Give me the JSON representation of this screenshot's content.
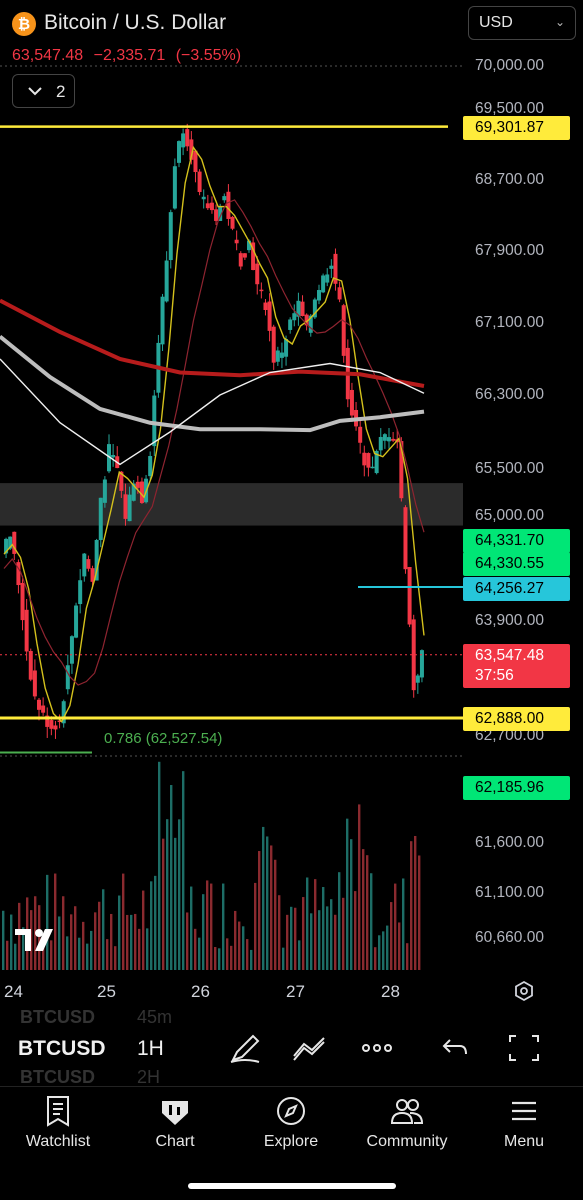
{
  "header": {
    "logo_glyph": "₿",
    "title": "Bitcoin / U.S. Dollar",
    "price": "63,547.48",
    "change": "−2,335.71",
    "change_pct": "(−3.55%)",
    "currency": "USD",
    "indicator_count": "2"
  },
  "price_axis": [
    "70,000.00",
    "69,500.00",
    "68,700.00",
    "67,900.00",
    "67,100.00",
    "66,300.00",
    "65,500.00",
    "65,000.00",
    "63,900.00",
    "62,700.00",
    "61,600.00",
    "61,100.00",
    "60,660.00"
  ],
  "price_tags": {
    "resistance": "69,301.87",
    "ma_a": "64,331.70",
    "ma_b": "64,330.55",
    "cursor": "64,256.27",
    "last": "63,547.48",
    "countdown": "37:56",
    "support": "62,888.00",
    "low": "62,185.96"
  },
  "fib_label": "0.786 (62,527.54)",
  "date_axis": [
    "24",
    "25",
    "26",
    "27",
    "28"
  ],
  "toolbar": {
    "symbol": "BTCUSD",
    "interval": "1H",
    "ghost_symbol": "BTCUSD",
    "ghost_top_interval": "45m",
    "ghost_bottom_interval": "2H"
  },
  "nav": [
    {
      "label": "Watchlist",
      "icon": "watchlist-icon"
    },
    {
      "label": "Chart",
      "icon": "chart-icon"
    },
    {
      "label": "Explore",
      "icon": "compass-icon"
    },
    {
      "label": "Community",
      "icon": "community-icon"
    },
    {
      "label": "Menu",
      "icon": "menu-icon"
    }
  ],
  "colors": {
    "up": "#26a69a",
    "down": "#f23645",
    "accent_yellow": "#ffeb3b",
    "ma_red": "#b71c1c",
    "ma_grey": "#bdbdbd"
  },
  "chart_data": {
    "type": "candlestick",
    "symbol": "BTCUSD",
    "interval": "1H",
    "ylim": [
      60660,
      70000
    ],
    "x_dates": [
      "24",
      "25",
      "26",
      "27",
      "28"
    ],
    "horizontal_levels": [
      69301.87,
      62888.0,
      62527.54,
      64256.27,
      63547.48
    ],
    "zone": [
      64900,
      65350
    ],
    "price_path": [
      64600,
      64800,
      64300,
      63600,
      63100,
      62900,
      62800,
      62850,
      63400,
      64100,
      64600,
      64300,
      65200,
      65700,
      65500,
      65000,
      65400,
      65200,
      65700,
      66900,
      67800,
      68900,
      69300,
      69000,
      68500,
      68400,
      68300,
      68500,
      68100,
      67800,
      68000,
      67500,
      67300,
      66700,
      66800,
      67100,
      67300,
      67000,
      67400,
      67600,
      67800,
      67300,
      66300,
      65900,
      65600,
      65500,
      65800,
      65900,
      65800,
      64500,
      63200,
      63547
    ]
  }
}
